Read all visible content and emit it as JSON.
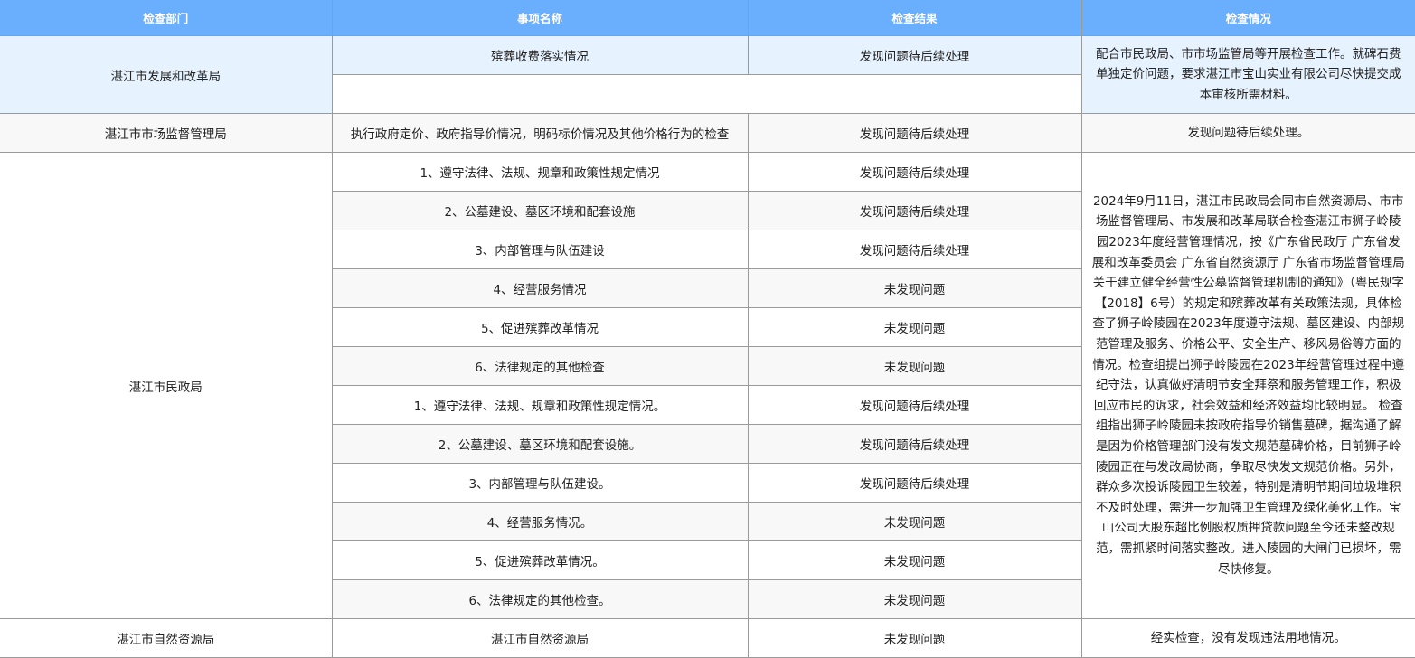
{
  "headers": [
    "检查部门",
    "事项名称",
    "检查结果",
    "检查情况"
  ],
  "colors": {
    "header_bg": "#6aaffe",
    "highlight_bg": "#e6f2fe",
    "stripe_bg": "#f8f8f8",
    "border": "#9a9a9a"
  },
  "groups": [
    {
      "department": "湛江市发展和改革局",
      "items": [
        {
          "name": "殡葬收费落实情况",
          "result": "发现问题待后续处理"
        },
        {
          "name": "",
          "result": ""
        }
      ],
      "description": "配合市民政局、市市场监管局等开展检查工作。就碑石费单独定价问题，要求湛江市宝山实业有限公司尽快提交成本审核所需材料。"
    },
    {
      "department": "湛江市市场监督管理局",
      "items": [
        {
          "name": "执行政府定价、政府指导价情况，明码标价情况及其他价格行为的检查",
          "result": "发现问题待后续处理"
        }
      ],
      "description": "发现问题待后续处理。"
    },
    {
      "department": "湛江市民政局",
      "items": [
        {
          "name": "1、遵守法律、法规、规章和政策性规定情况",
          "result": "发现问题待后续处理"
        },
        {
          "name": "2、公墓建设、墓区环境和配套设施",
          "result": "发现问题待后续处理"
        },
        {
          "name": "3、内部管理与队伍建设",
          "result": "发现问题待后续处理"
        },
        {
          "name": "4、经营服务情况",
          "result": "未发现问题"
        },
        {
          "name": "5、促进殡葬改革情况",
          "result": "未发现问题"
        },
        {
          "name": "6、法律规定的其他检查",
          "result": "未发现问题"
        },
        {
          "name": "1、遵守法律、法规、规章和政策性规定情况。",
          "result": "发现问题待后续处理"
        },
        {
          "name": "2、公墓建设、墓区环境和配套设施。",
          "result": "发现问题待后续处理"
        },
        {
          "name": "3、内部管理与队伍建设。",
          "result": "发现问题待后续处理"
        },
        {
          "name": "4、经营服务情况。",
          "result": "未发现问题"
        },
        {
          "name": "5、促进殡葬改革情况。",
          "result": "未发现问题"
        },
        {
          "name": "6、法律规定的其他检查。",
          "result": "未发现问题"
        }
      ],
      "description": "2024年9月11日，湛江市民政局会同市自然资源局、市市场监督管理局、市发展和改革局联合检查湛江市狮子岭陵园2023年度经营管理情况，按《广东省民政厅 广东省发展和改革委员会 广东省自然资源厅 广东省市场监督管理局关于建立健全经营性公墓监督管理机制的通知》（粤民规字【2018】6号）的规定和殡葬改革有关政策法规，具体检查了狮子岭陵园在2023年度遵守法规、墓区建设、内部规范管理及服务、价格公平、安全生产、移风易俗等方面的情况。检查组提出狮子岭陵园在2023年经营管理过程中遵纪守法，认真做好清明节安全拜祭和服务管理工作，积极回应市民的诉求，社会效益和经济效益均比较明显。 检查组指出狮子岭陵园未按政府指导价销售墓碑，据沟通了解是因为价格管理部门没有发文规范墓碑价格，目前狮子岭陵园正在与发改局协商，争取尽快发文规范价格。另外，群众多次投诉陵园卫生较差，特别是清明节期间垃圾堆积不及时处理，需进一步加强卫生管理及绿化美化工作。宝山公司大股东超比例股权质押贷款问题至今还未整改规范，需抓紧时间落实整改。进入陵园的大闸门已损坏，需尽快修复。"
    },
    {
      "department": "湛江市自然资源局",
      "items": [
        {
          "name": "湛江市自然资源局",
          "result": "未发现问题"
        }
      ],
      "description": "经实检查，没有发现违法用地情况。"
    }
  ]
}
